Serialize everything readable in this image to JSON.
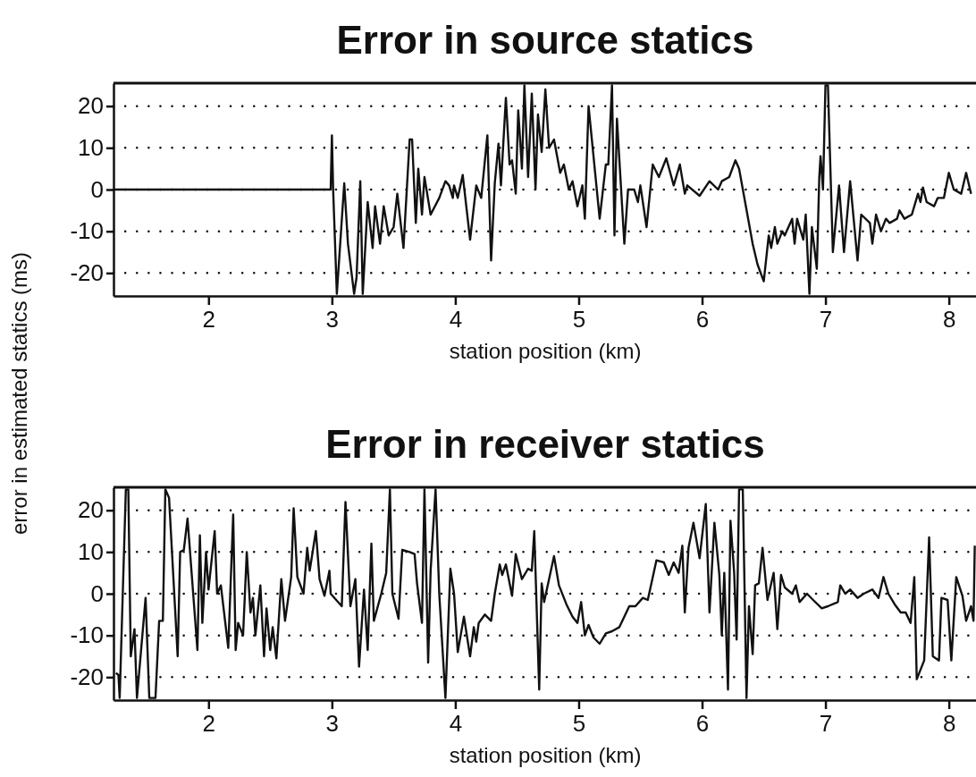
{
  "chart_data": [
    {
      "type": "line",
      "title": "Error in source statics",
      "xlabel": "station position (km)",
      "ylabel": "error in estimated statics (ms)",
      "xlim": [
        1.23,
        8.22
      ],
      "xticks": [
        2,
        3,
        4,
        5,
        6,
        7,
        8
      ],
      "ylim": [
        -25.5,
        25.5
      ],
      "yticks": [
        20,
        10,
        0,
        -10,
        -20
      ],
      "grid": "y",
      "series": [
        {
          "color": "#111111",
          "x": [
            1.23,
            2.99,
            3.0,
            3.01,
            3.04,
            3.1,
            3.13,
            3.18,
            3.2,
            3.23,
            3.25,
            3.29,
            3.33,
            3.35,
            3.39,
            3.42,
            3.46,
            3.5,
            3.53,
            3.58,
            3.63,
            3.65,
            3.68,
            3.7,
            3.73,
            3.75,
            3.8,
            3.87,
            3.92,
            3.95,
            3.98,
            3.99,
            4.02,
            4.06,
            4.12,
            4.17,
            4.21,
            4.26,
            4.29,
            4.32,
            4.35,
            4.37,
            4.41,
            4.44,
            4.46,
            4.49,
            4.51,
            4.54,
            4.56,
            4.59,
            4.62,
            4.65,
            4.67,
            4.7,
            4.73,
            4.76,
            4.8,
            4.85,
            4.88,
            4.92,
            4.95,
            4.99,
            5.03,
            5.05,
            5.08,
            5.17,
            5.22,
            5.24,
            5.27,
            5.29,
            5.31,
            5.37,
            5.4,
            5.45,
            5.48,
            5.5,
            5.55,
            5.6,
            5.65,
            5.71,
            5.77,
            5.82,
            5.86,
            5.88,
            5.98,
            6.06,
            6.13,
            6.16,
            6.22,
            6.27,
            6.3,
            6.41,
            6.45,
            6.5,
            6.54,
            6.56,
            6.59,
            6.61,
            6.65,
            6.67,
            6.73,
            6.75,
            6.77,
            6.82,
            6.84,
            6.87,
            6.89,
            6.93,
            6.95,
            6.96,
            6.98,
            7.0,
            7.02,
            7.06,
            7.11,
            7.15,
            7.2,
            7.26,
            7.29,
            7.36,
            7.38,
            7.41,
            7.45,
            7.49,
            7.52,
            7.58,
            7.6,
            7.64,
            7.7,
            7.75,
            7.77,
            7.79,
            7.82,
            7.88,
            7.91,
            7.96,
            8.0,
            8.04,
            8.1,
            8.14,
            8.18
          ],
          "values": [
            0,
            0,
            13,
            0,
            -25,
            1.5,
            -13,
            -25,
            -21,
            2,
            -25,
            -3,
            -14,
            -4,
            -13,
            -4,
            -11,
            -9,
            -1,
            -14,
            12,
            12,
            -8,
            5,
            -6,
            3,
            -6,
            -2,
            2,
            1,
            -2,
            1,
            -2,
            3.5,
            -12,
            1,
            -2,
            13,
            -17,
            1.5,
            11,
            1,
            22,
            6,
            7,
            -1,
            19,
            5,
            25,
            3,
            23,
            0,
            18,
            9,
            24,
            10,
            12,
            4,
            6,
            0,
            2,
            -4,
            1,
            -7,
            20,
            -7,
            6,
            6,
            25,
            -11,
            17,
            -13,
            0,
            0,
            -3,
            1,
            -9,
            6,
            3,
            7.5,
            1,
            6,
            -1,
            1,
            -1.5,
            2,
            0,
            2,
            3,
            7,
            5,
            -13,
            -18,
            -22,
            -11,
            -14,
            -9,
            -13,
            -10,
            -11,
            -7,
            -13,
            -7,
            -12,
            -6,
            -25,
            -9,
            -19,
            3,
            8,
            0,
            25,
            25,
            -15,
            1,
            -15,
            2,
            -17,
            -6,
            -8,
            -13,
            -6,
            -10,
            -7,
            -8,
            -7,
            -5,
            -7,
            -6,
            -1,
            -3,
            0.5,
            -3,
            -4,
            -2,
            -2,
            4,
            0,
            -1,
            4,
            -1
          ]
        }
      ]
    },
    {
      "type": "line",
      "title": "Error in receiver statics",
      "xlabel": "station position (km)",
      "xlim": [
        1.23,
        8.22
      ],
      "xticks": [
        2,
        3,
        4,
        5,
        6,
        7,
        8
      ],
      "ylim": [
        -25.5,
        25.5
      ],
      "yticks": [
        20,
        10,
        0,
        -10,
        -20
      ],
      "grid": "y",
      "series": [
        {
          "color": "#111111",
          "x": [
            1.25,
            1.27,
            1.28,
            1.33,
            1.35,
            1.37,
            1.4,
            1.42,
            1.49,
            1.52,
            1.57,
            1.6,
            1.63,
            1.65,
            1.68,
            1.75,
            1.77,
            1.8,
            1.83,
            1.91,
            1.93,
            1.95,
            1.98,
            2.0,
            2.05,
            2.07,
            2.1,
            2.16,
            2.2,
            2.22,
            2.24,
            2.28,
            2.31,
            2.34,
            2.36,
            2.38,
            2.42,
            2.45,
            2.47,
            2.5,
            2.52,
            2.55,
            2.59,
            2.62,
            2.67,
            2.69,
            2.72,
            2.77,
            2.8,
            2.82,
            2.87,
            2.9,
            2.94,
            2.98,
            2.99,
            3.08,
            3.11,
            3.15,
            3.19,
            3.22,
            3.26,
            3.29,
            3.32,
            3.34,
            3.4,
            3.44,
            3.47,
            3.49,
            3.54,
            3.57,
            3.63,
            3.67,
            3.69,
            3.73,
            3.75,
            3.78,
            3.8,
            3.84,
            3.87,
            3.92,
            3.96,
            3.99,
            4.02,
            4.07,
            4.12,
            4.15,
            4.17,
            4.19,
            4.24,
            4.29,
            4.32,
            4.36,
            4.38,
            4.41,
            4.46,
            4.49,
            4.54,
            4.59,
            4.62,
            4.64,
            4.68,
            4.7,
            4.72,
            4.8,
            4.84,
            4.9,
            4.95,
            4.99,
            5.02,
            5.05,
            5.08,
            5.12,
            5.17,
            5.22,
            5.27,
            5.33,
            5.41,
            5.46,
            5.52,
            5.56,
            5.63,
            5.69,
            5.73,
            5.77,
            5.81,
            5.84,
            5.86,
            5.89,
            5.93,
            5.98,
            6.03,
            6.06,
            6.1,
            6.14,
            6.16,
            6.18,
            6.21,
            6.23,
            6.26,
            6.28,
            6.3,
            6.33,
            6.36,
            6.38,
            6.41,
            6.43,
            6.46,
            6.49,
            6.53,
            6.58,
            6.61,
            6.64,
            6.67,
            6.73,
            6.76,
            6.79,
            6.85,
            6.9,
            6.97,
            7.02,
            7.1,
            7.12,
            7.16,
            7.2,
            7.26,
            7.31,
            7.38,
            7.43,
            7.47,
            7.51,
            7.56,
            7.61,
            7.65,
            7.69,
            7.72,
            7.74,
            7.8,
            7.84,
            7.87,
            7.92,
            7.94,
            7.99,
            8.02,
            8.06,
            8.11,
            8.14,
            8.18,
            8.2,
            8.21
          ],
          "values": [
            -19,
            -19.5,
            -25,
            25,
            25,
            -15,
            -8.5,
            -25,
            -1,
            -25,
            -25,
            -6.5,
            -6.5,
            25,
            23,
            -15,
            10,
            10.5,
            18,
            -13.5,
            14,
            -7,
            10,
            1,
            15,
            0,
            2,
            -13,
            19,
            -13.5,
            -7,
            -10,
            10,
            -4.5,
            -1,
            -10,
            2,
            -15,
            -3.5,
            -13.5,
            -8,
            -15.5,
            3.5,
            -6.5,
            4,
            20.5,
            4,
            0,
            11,
            5.5,
            15,
            3.5,
            -0.5,
            5.5,
            0,
            -3,
            22,
            -3,
            3.5,
            -17.5,
            1,
            -13.5,
            12,
            -6.5,
            0,
            5,
            25,
            0,
            -6,
            10.5,
            10,
            9.5,
            2.5,
            -7,
            25,
            -16.5,
            5.5,
            25,
            0,
            -25,
            6,
            0,
            -14,
            -5.5,
            -15,
            -8,
            -11.5,
            -7,
            -5,
            -6.5,
            0,
            7,
            4.5,
            7,
            -0.5,
            9.5,
            3.5,
            6,
            5.5,
            15,
            -23,
            2.5,
            -2,
            9,
            2,
            -2.5,
            -5.5,
            -7,
            -2,
            -10,
            -7.5,
            -10.5,
            -12,
            -9.5,
            -9,
            -8,
            -3,
            -3,
            -1,
            -1.5,
            8,
            7.5,
            4.5,
            7.5,
            5,
            11.5,
            -4.5,
            11,
            17,
            8.5,
            21.5,
            -4.5,
            17,
            4.5,
            -10,
            5,
            -23,
            17.5,
            5,
            -11,
            25,
            25,
            -25,
            -3,
            -14.5,
            2,
            2.5,
            11,
            -1.5,
            5,
            -8.5,
            4.5,
            1.5,
            0,
            2,
            -2,
            0,
            -1.5,
            -3.5,
            -3,
            -2,
            2,
            0,
            1,
            -1,
            0,
            1,
            -1,
            4,
            0,
            -2.5,
            -4.5,
            -4.5,
            -7,
            4,
            -20.5,
            -16,
            13.5,
            -15,
            -16,
            -1,
            -1.5,
            -16,
            4,
            -0.5,
            -6.5,
            -3,
            -6.5,
            11.5
          ]
        }
      ]
    }
  ]
}
